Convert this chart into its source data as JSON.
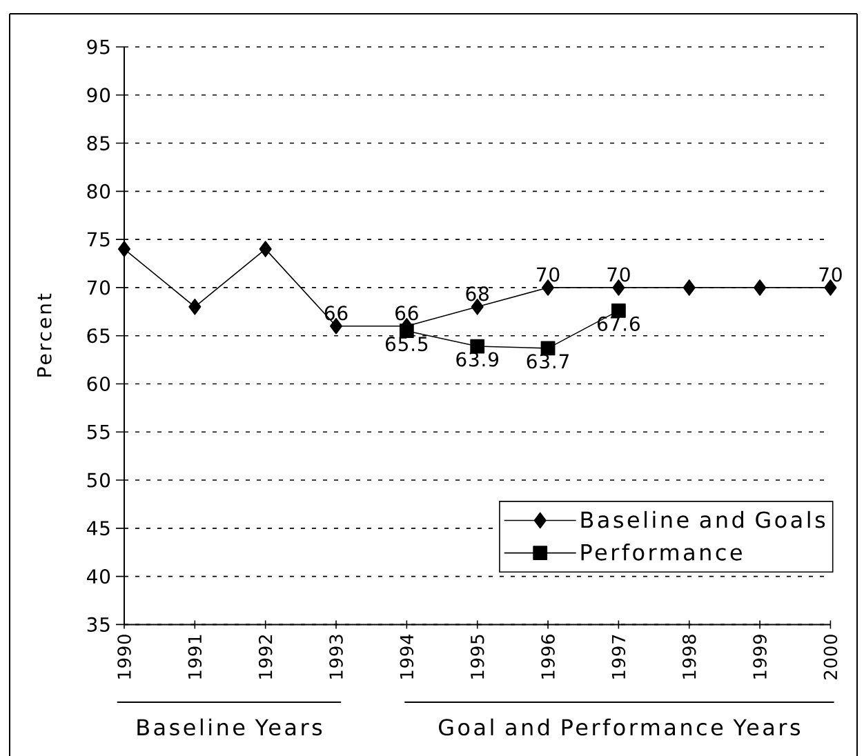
{
  "chart_data": {
    "type": "line",
    "ylabel": "Percent",
    "categories": [
      "1990",
      "1991",
      "1992",
      "1993",
      "1994",
      "1995",
      "1996",
      "1997",
      "1998",
      "1999",
      "2000"
    ],
    "series": [
      {
        "name": "Baseline and Goals",
        "color": "#000000",
        "marker": "diamond",
        "values": [
          74,
          68,
          74,
          66,
          66,
          68,
          70,
          70,
          70,
          70,
          70
        ],
        "value_labels": [
          null,
          null,
          null,
          "66",
          "66",
          "68",
          "70",
          "70",
          null,
          null,
          "70"
        ]
      },
      {
        "name": "Performance",
        "color": "#000000",
        "marker": "square",
        "values": [
          null,
          null,
          null,
          null,
          65.5,
          63.9,
          63.7,
          67.6,
          null,
          null,
          null
        ],
        "value_labels": [
          null,
          null,
          null,
          null,
          "65.5",
          "63.9",
          "63.7",
          "67.6",
          null,
          null,
          null
        ]
      }
    ],
    "ylim": [
      35,
      95
    ],
    "yticks": [
      35,
      40,
      45,
      50,
      55,
      60,
      65,
      70,
      75,
      80,
      85,
      90,
      95
    ],
    "grid": "y",
    "legend": "bottom right",
    "line_style": "solid",
    "annotations": [
      "Baseline Years",
      "Goal and Performance Years"
    ]
  }
}
